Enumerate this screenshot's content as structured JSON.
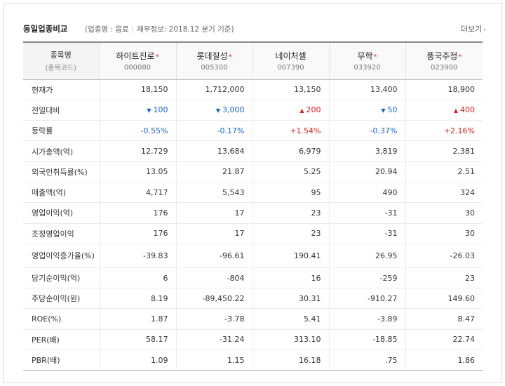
{
  "header": {
    "title": "동일업종비교",
    "subtitle_paren_open": "(",
    "industry_label": "업종명 : 음료",
    "finance_label": "재무정보: 2018.12 분기 기준",
    "subtitle_paren_close": ")",
    "more_label": "더보기"
  },
  "table": {
    "corner_label": "종목명",
    "corner_sublabel": "(종목코드)",
    "companies": [
      {
        "name": "하이트진로",
        "code": "000080",
        "starred": true
      },
      {
        "name": "롯데칠성",
        "code": "005300",
        "starred": true
      },
      {
        "name": "네이처셀",
        "code": "007390",
        "starred": false
      },
      {
        "name": "무학",
        "code": "033920",
        "starred": true
      },
      {
        "name": "풍국주정",
        "code": "023900",
        "starred": true
      }
    ],
    "rows": [
      {
        "label": "현재가",
        "values": [
          "18,150",
          "1,712,000",
          "13,150",
          "13,400",
          "18,900"
        ]
      },
      {
        "label": "전일대비",
        "values": [
          "100",
          "3,000",
          "200",
          "50",
          "400"
        ],
        "directions": [
          "down",
          "down",
          "up",
          "down",
          "up"
        ]
      },
      {
        "label": "등락률",
        "values": [
          "-0.55%",
          "-0.17%",
          "+1.54%",
          "-0.37%",
          "+2.16%"
        ],
        "directions": [
          "down",
          "down",
          "up",
          "down",
          "up"
        ]
      },
      {
        "label": "시가총액(억)",
        "values": [
          "12,729",
          "13,684",
          "6,979",
          "3,819",
          "2,381"
        ]
      },
      {
        "label": "외국인취득률(%)",
        "values": [
          "13.05",
          "21.87",
          "5.25",
          "20.94",
          "2.51"
        ]
      },
      {
        "label": "매출액(억)",
        "values": [
          "4,717",
          "5,543",
          "95",
          "490",
          "324"
        ]
      },
      {
        "label": "영업이익(억)",
        "values": [
          "176",
          "17",
          "23",
          "-31",
          "30"
        ]
      },
      {
        "label": "조정영업이익",
        "values": [
          "176",
          "17",
          "23",
          "-31",
          "30"
        ]
      },
      {
        "label": "영업이익증가율(%)",
        "values": [
          "-39.83",
          "-96.61",
          "190.41",
          "26.95",
          "-26.03"
        ],
        "tall": true
      },
      {
        "label": "당기순이익(억)",
        "values": [
          "6",
          "-804",
          "16",
          "-259",
          "23"
        ]
      },
      {
        "label": "주당순이익(원)",
        "values": [
          "8.19",
          "-89,450.22",
          "30.31",
          "-910.27",
          "149.60"
        ]
      },
      {
        "label": "ROE(%)",
        "values": [
          "1.87",
          "-3.78",
          "5.41",
          "-3.89",
          "8.47"
        ]
      },
      {
        "label": "PER(배)",
        "values": [
          "58.17",
          "-31.24",
          "313.10",
          "-18.85",
          "22.74"
        ]
      },
      {
        "label": "PBR(배)",
        "values": [
          "1.09",
          "1.15",
          "16.18",
          ".75",
          "1.86"
        ]
      }
    ]
  },
  "colors": {
    "up": "#d0211c",
    "down": "#1a63c5",
    "star": "#e0301e"
  },
  "icons": {
    "up": "up-triangle-icon",
    "down": "down-triangle-icon",
    "more": "chevron-right-icon",
    "star": "star-icon"
  }
}
